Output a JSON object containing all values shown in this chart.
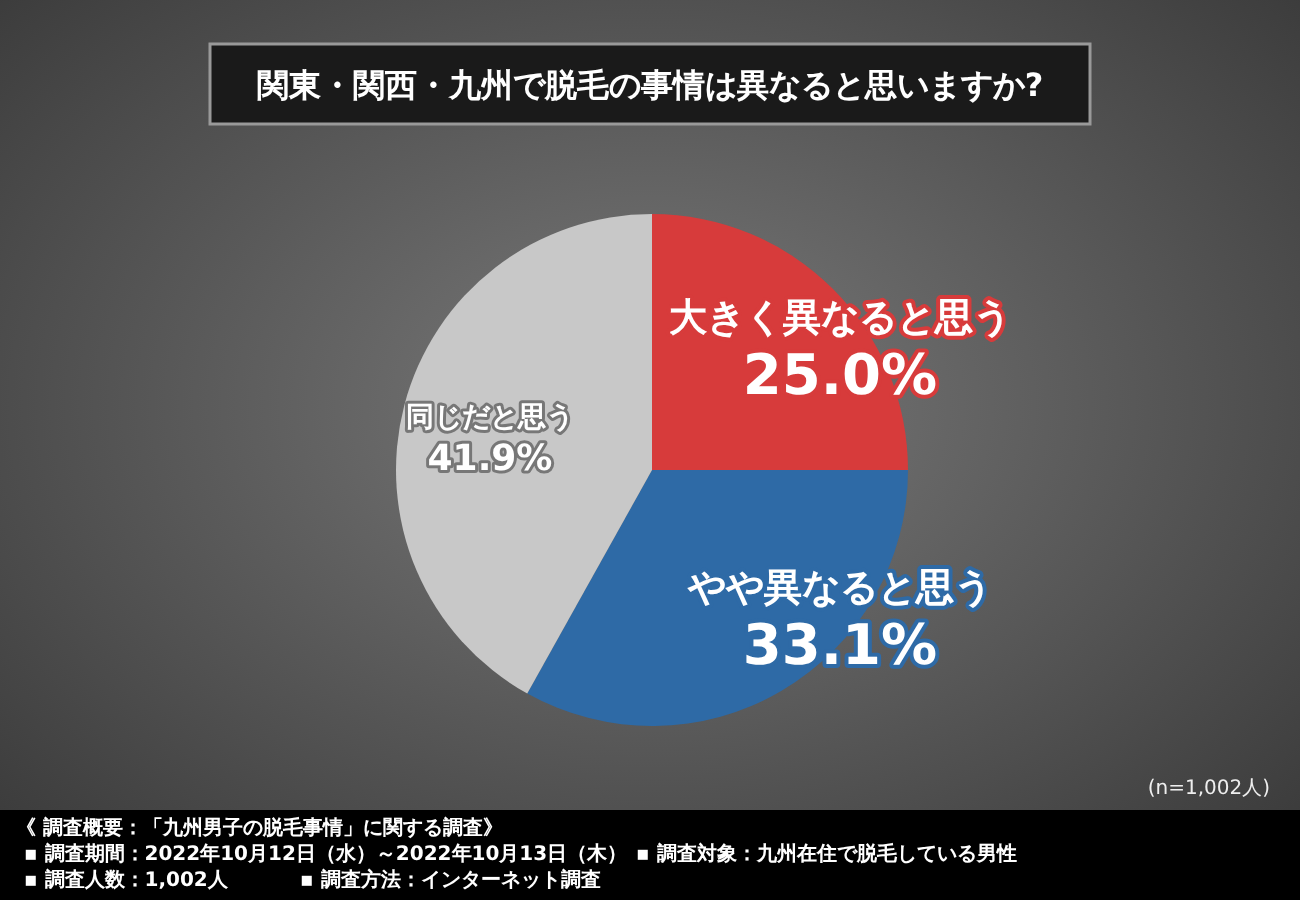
{
  "chart_data": {
    "type": "pie",
    "title": "関東・関西・九州で脱毛の事情は異なると思いますか?",
    "categories": [
      "大きく異なると思う",
      "やや異なると思う",
      "同じだと思う"
    ],
    "values": [
      25.0,
      33.1,
      41.9
    ],
    "value_labels": [
      "25.0%",
      "33.1%",
      "41.9%"
    ],
    "colors": [
      "#d73b3b",
      "#2e6aa6",
      "#c8c8c8"
    ],
    "annotations": [
      "(n=1,002人)",
      "《 調査概要：「九州男子の脱毛事情」に関する調査》",
      "▪ 調査期間：2022年10月12日（水）～2022年10月13日（木）",
      "▪ 調査人数：1,002人",
      "▪ 調査方法：インターネット調査",
      "▪ 調査対象：九州在住で脱毛している男性"
    ]
  }
}
